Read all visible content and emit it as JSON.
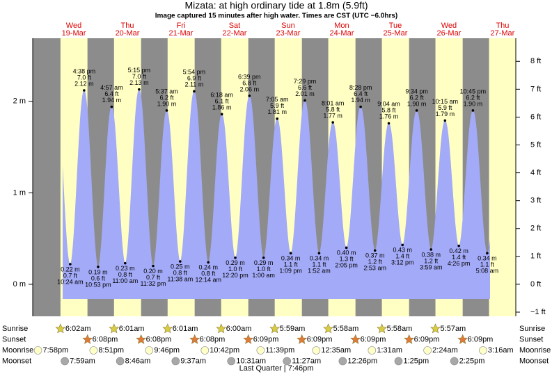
{
  "chart_data": {
    "type": "tide",
    "title": "Mizata: at high  ordinary tide at 1.8m (5.9ft)",
    "subtitle": "Image captured 15 minutes after high water. Times are CST (UTC −6.0hrs)",
    "days": [
      "Wed",
      "Thu",
      "Fri",
      "Sat",
      "Sun",
      "Mon",
      "Tue",
      "Wed",
      "Thu"
    ],
    "dates": [
      "19-Mar",
      "20-Mar",
      "21-Mar",
      "22-Mar",
      "23-Mar",
      "24-Mar",
      "25-Mar",
      "26-Mar",
      "27-Mar"
    ],
    "tides": {
      "color": "#a3aaf7",
      "times": [
        "10:24 am",
        "4:38 pm",
        "10:53 pm",
        "4:57 am",
        "11:00 am",
        "5:15 pm",
        "11:32 pm",
        "5:37 am",
        "11:38 am",
        "5:54 pm",
        "12:14 am",
        "6:18 am",
        "12:20 pm",
        "6:39 pm",
        "1:00 am",
        "7:05 am",
        "1:09 pm",
        "7:29 pm",
        "1:52 am",
        "8:01 am",
        "2:05 pm",
        "8:28 pm",
        "2:53 am",
        "9:04 am",
        "3:12 pm",
        "9:34 pm",
        "3:59 am",
        "10:15 am",
        "4:26 pm",
        "10:45 pm",
        "5:08 am"
      ],
      "values": [
        0.22,
        2.12,
        0.19,
        1.94,
        0.23,
        2.13,
        0.2,
        1.9,
        0.25,
        2.11,
        0.24,
        1.86,
        0.29,
        2.06,
        0.29,
        1.81,
        0.34,
        2.01,
        0.34,
        1.77,
        0.4,
        1.94,
        0.37,
        1.76,
        0.43,
        1.9,
        0.38,
        1.79,
        0.42,
        1.9,
        0.34
      ],
      "value_labels": [
        "0.22 m",
        "2.12 m",
        "0.19 m",
        "1.94 m",
        "0.23 m",
        "2.13 m",
        "0.20 m",
        "1.90 m",
        "0.25 m",
        "2.11 m",
        "0.24 m",
        "1.86 m",
        "0.29 m",
        "2.06 m",
        "0.29 m",
        "1.81 m",
        "0.34 m",
        "2.01 m",
        "0.34 m",
        "1.77 m",
        "0.40 m",
        "1.94 m",
        "0.37 m",
        "1.76 m",
        "0.43 m",
        "1.90 m",
        "0.38 m",
        "1.79 m",
        "0.42 m",
        "1.90 m",
        "0.34 m"
      ],
      "feet_labels": [
        "0.7 ft",
        "7.0 ft",
        "0.6 ft",
        "6.4 ft",
        "0.8 ft",
        "7.0 ft",
        "0.7 ft",
        "6.2 ft",
        "0.8 ft",
        "6.9 ft",
        "0.8 ft",
        "6.1 ft",
        "1.0 ft",
        "6.8 ft",
        "1.0 ft",
        "5.9 ft",
        "1.1 ft",
        "6.6 ft",
        "1.1 ft",
        "5.8 ft",
        "1.3 ft",
        "6.4 ft",
        "1.2 ft",
        "5.8 ft",
        "1.4 ft",
        "6.2 ft",
        "1.2 ft",
        "5.9 ft",
        "1.4 ft",
        "6.2 ft",
        "1.1 ft"
      ]
    },
    "ylim": [
      -0.35,
      2.69
    ],
    "yticks": [
      {
        "value": 0,
        "label": "0 m"
      },
      {
        "value": 1,
        "label": "1 m"
      },
      {
        "value": 2,
        "label": "2 m"
      }
    ],
    "y2lim": [
      -1.15,
      8.83
    ],
    "y2ticks": [
      {
        "value": -1,
        "label": "−1 ft"
      },
      {
        "value": 0,
        "label": "0 ft"
      },
      {
        "value": 1,
        "label": "1 ft"
      },
      {
        "value": 2,
        "label": "2 ft"
      },
      {
        "value": 3,
        "label": "3 ft"
      },
      {
        "value": 4,
        "label": "4 ft"
      },
      {
        "value": 5,
        "label": "5 ft"
      },
      {
        "value": 6,
        "label": "6 ft"
      },
      {
        "value": 7,
        "label": "7 ft"
      },
      {
        "value": 8,
        "label": "8 ft"
      }
    ],
    "day_color": "#ffffc4",
    "night_color": "#8c8c8c",
    "rows": [
      {
        "name": "Sunrise",
        "color": "#d8cc44",
        "icon": "star",
        "times": [
          "6:02am",
          "6:01am",
          "6:01am",
          "6:00am",
          "5:59am",
          "5:58am",
          "5:58am",
          "5:57am"
        ]
      },
      {
        "name": "Sunset",
        "color": "#e07a3a",
        "icon": "star",
        "times": [
          "6:08pm",
          "6:08pm",
          "6:08pm",
          "6:09pm",
          "6:09pm",
          "6:09pm",
          "6:09pm",
          "6:09pm"
        ]
      },
      {
        "name": "Moonrise",
        "color": "#ffffc8",
        "icon": "moon",
        "times": [
          "7:58pm",
          "8:51pm",
          "9:46pm",
          "10:42pm",
          "11:39pm",
          "12:35am",
          "1:31am",
          "2:24am",
          "3:16am"
        ]
      },
      {
        "name": "Moonset",
        "color": "#a8a8a8",
        "icon": "moon",
        "times": [
          "7:59am",
          "8:46am",
          "9:37am",
          "10:31am",
          "11:27am",
          "12:26pm",
          "1:25pm",
          "2:25pm"
        ]
      }
    ],
    "footer": "Last Quarter | 7:46pm"
  }
}
